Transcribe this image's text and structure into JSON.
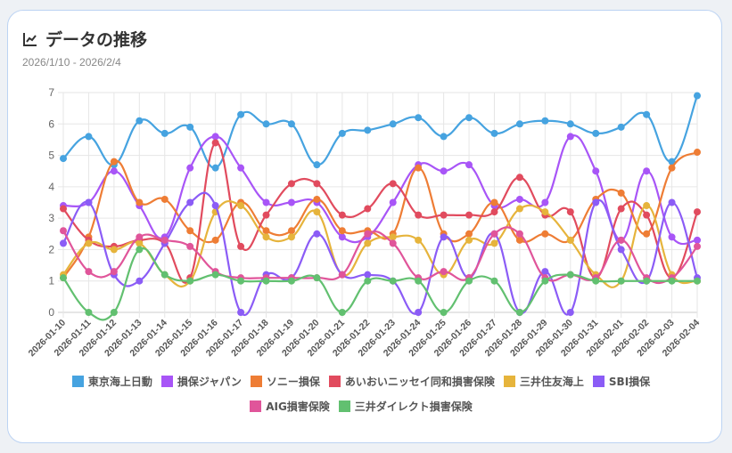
{
  "header": {
    "title": "データの推移",
    "subtitle": "2026/1/10 - 2026/2/4",
    "icon": "line-chart-icon"
  },
  "chart_data": {
    "type": "line",
    "title": "データの推移",
    "ylim": [
      0,
      7
    ],
    "yticks": [
      0,
      1,
      2,
      3,
      4,
      5,
      6,
      7
    ],
    "grid": true,
    "legend_position": "bottom",
    "x": [
      "2026-01-10",
      "2026-01-11",
      "2026-01-12",
      "2026-01-13",
      "2026-01-14",
      "2026-01-15",
      "2026-01-16",
      "2026-01-17",
      "2026-01-18",
      "2026-01-19",
      "2026-01-20",
      "2026-01-21",
      "2026-01-22",
      "2026-01-23",
      "2026-01-24",
      "2026-01-25",
      "2026-01-26",
      "2026-01-27",
      "2026-01-28",
      "2026-01-29",
      "2026-01-30",
      "2026-01-31",
      "2026-02-01",
      "2026-02-02",
      "2026-02-03",
      "2026-02-04"
    ],
    "series": [
      {
        "name": "東京海上日動",
        "color": "#46a3e0",
        "values": [
          4.9,
          5.6,
          4.7,
          6.1,
          5.7,
          5.9,
          4.6,
          6.3,
          6.0,
          6.0,
          4.7,
          5.7,
          5.8,
          6.0,
          6.2,
          5.6,
          6.2,
          5.7,
          6.0,
          6.1,
          6.0,
          5.7,
          5.9,
          6.3,
          4.8,
          6.9
        ]
      },
      {
        "name": "損保ジャパン",
        "color": "#a855f7",
        "values": [
          3.4,
          3.5,
          4.5,
          3.4,
          2.4,
          4.6,
          5.6,
          4.6,
          3.5,
          3.5,
          3.5,
          2.4,
          2.4,
          3.5,
          4.7,
          4.5,
          4.7,
          3.4,
          3.6,
          3.5,
          5.6,
          4.5,
          2.3,
          4.5,
          2.4,
          2.3
        ]
      },
      {
        "name": "ソニー損保",
        "color": "#ee7d35",
        "values": [
          1.1,
          2.4,
          4.8,
          3.5,
          3.6,
          2.6,
          2.3,
          3.5,
          2.6,
          2.6,
          3.6,
          2.6,
          2.6,
          2.5,
          4.6,
          2.5,
          2.5,
          3.5,
          2.3,
          2.5,
          2.3,
          3.6,
          3.8,
          2.5,
          4.6,
          5.1
        ]
      },
      {
        "name": "あいおいニッセイ同和損害保険",
        "color": "#e14b5e",
        "values": [
          3.3,
          2.3,
          2.1,
          2.3,
          2.2,
          1.1,
          5.4,
          2.1,
          3.1,
          4.1,
          4.1,
          3.1,
          3.3,
          4.1,
          3.1,
          3.1,
          3.1,
          3.2,
          4.3,
          3.1,
          3.2,
          1.1,
          3.3,
          3.1,
          1.1,
          3.2
        ]
      },
      {
        "name": "三井住友海上",
        "color": "#e6b43c",
        "values": [
          1.2,
          2.2,
          2.0,
          2.2,
          1.2,
          1.0,
          3.2,
          3.4,
          2.4,
          2.4,
          3.2,
          1.2,
          2.2,
          2.4,
          2.3,
          1.2,
          2.3,
          2.2,
          3.3,
          3.2,
          2.3,
          1.2,
          1.0,
          3.4,
          1.2,
          1.0
        ]
      },
      {
        "name": "SBI損保",
        "color": "#8b5cf6",
        "values": [
          2.2,
          3.5,
          1.2,
          1.0,
          2.2,
          3.5,
          3.4,
          0,
          1.2,
          1.1,
          2.5,
          1.2,
          1.2,
          1.0,
          0,
          2.4,
          1.1,
          2.5,
          0,
          1.3,
          0,
          3.5,
          2.0,
          1.0,
          3.5,
          1.1
        ]
      },
      {
        "name": "AIG損害保険",
        "color": "#e0559a",
        "values": [
          2.6,
          1.3,
          1.3,
          2.4,
          2.3,
          2.1,
          1.3,
          1.1,
          1.1,
          1.1,
          1.1,
          1.2,
          2.5,
          2.2,
          1.1,
          1.3,
          1.1,
          2.5,
          2.5,
          1.1,
          1.2,
          1.1,
          2.3,
          1.1,
          1.1,
          2.1
        ]
      },
      {
        "name": "三井ダイレクト損害保険",
        "color": "#62c070",
        "values": [
          1.1,
          0,
          0,
          2.0,
          1.2,
          1.0,
          1.2,
          1.0,
          1.0,
          1.0,
          1.1,
          0,
          1.0,
          1.0,
          1.0,
          0,
          1.0,
          1.0,
          0,
          1.0,
          1.2,
          1.0,
          1.0,
          1.0,
          1.0,
          1.0
        ]
      }
    ]
  }
}
